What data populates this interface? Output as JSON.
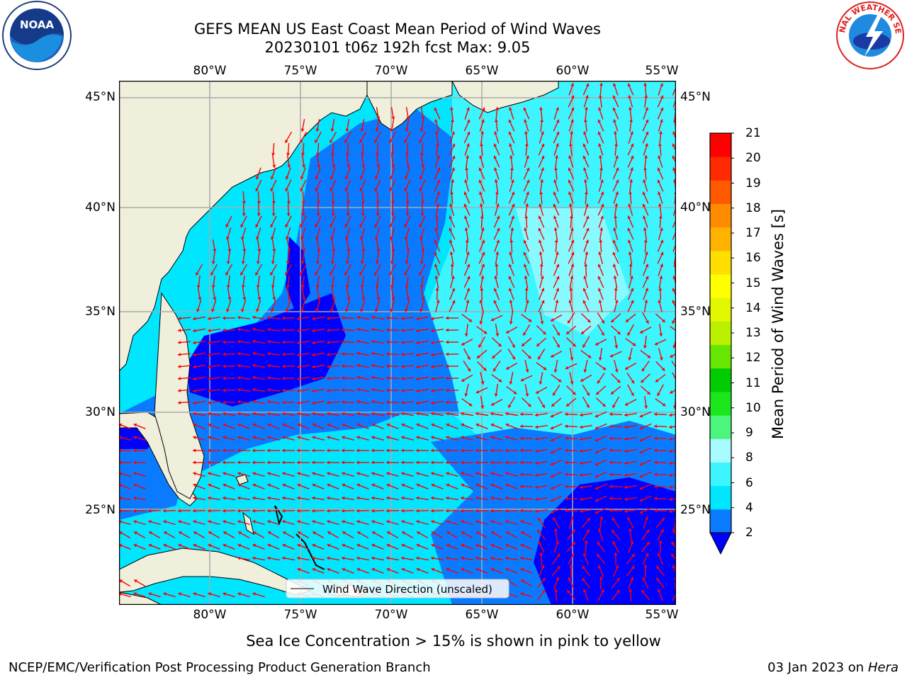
{
  "title": {
    "line1": "GEFS MEAN US East Coast Mean Period of Wind Waves",
    "line2": "20230101 t06z 192h fcst   Max: 9.05"
  },
  "logos": {
    "left": {
      "icon": "noaa-logo",
      "text": "NOAA"
    },
    "right": {
      "icon": "nws-logo",
      "text": "NATIONAL WEATHER SERVICE"
    }
  },
  "map": {
    "lon_ticks": [
      "80°W",
      "75°W",
      "70°W",
      "65°W",
      "60°W",
      "55°W"
    ],
    "lat_ticks": [
      "45°N",
      "40°N",
      "35°N",
      "30°N",
      "25°N"
    ],
    "legend_label": "Wind Wave Direction (unscaled)",
    "arrow_color": "#ff0000",
    "land_color": "#efefdc",
    "grid_color": "#aaaaaa"
  },
  "colorbar": {
    "label": "Mean Period of Wind Waves [s]",
    "ticks": [
      "21",
      "20",
      "19",
      "18",
      "17",
      "16",
      "15",
      "14",
      "13",
      "12",
      "11",
      "10",
      "9",
      "8",
      "6",
      "4",
      "2"
    ],
    "colors": [
      "#0000ff",
      "#0a7bff",
      "#00e6ff",
      "#3cf5ff",
      "#a7fcff",
      "#4cf57c",
      "#1ce61c",
      "#00cc00",
      "#66e600",
      "#bbf000",
      "#e3f700",
      "#ffff00",
      "#ffdf00",
      "#ffb300",
      "#ff8c00",
      "#ff5a00",
      "#ff2a00",
      "#ff0000"
    ]
  },
  "caption": "Sea Ice Concentration > 15% is shown in pink to yellow",
  "footer": {
    "left": "NCEP/EMC/Verification Post Processing Product Generation Branch",
    "right_date": "03 Jan 2023 on ",
    "right_host": "Hera"
  }
}
